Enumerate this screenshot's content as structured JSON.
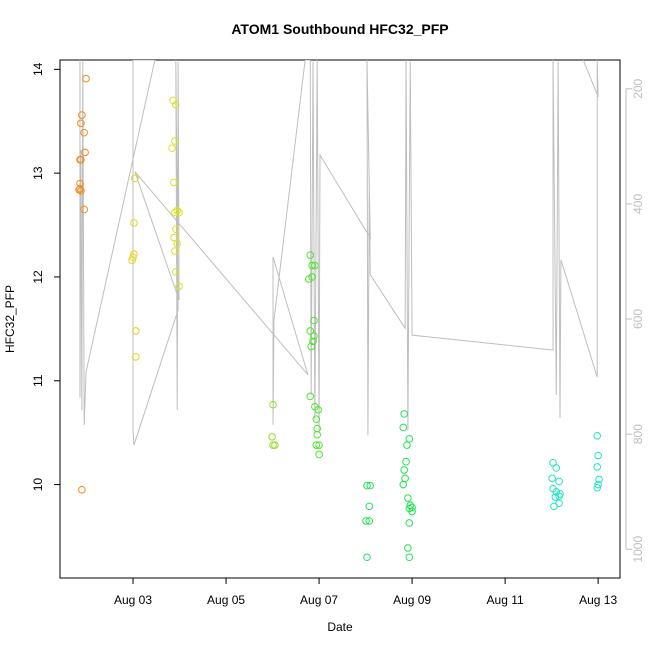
{
  "chart_data": {
    "type": "scatter",
    "title": "ATOM1 Southbound HFC32_PFP",
    "x_label": "Date",
    "y_label": "HFC32_PFP",
    "xlim": [
      1.43,
      13.47
    ],
    "xticks": [
      {
        "value": 3,
        "label": "Aug 03"
      },
      {
        "value": 5,
        "label": "Aug 05"
      },
      {
        "value": 7,
        "label": "Aug 07"
      },
      {
        "value": 9,
        "label": "Aug 09"
      },
      {
        "value": 11,
        "label": "Aug 11"
      },
      {
        "value": 13,
        "label": "Aug 13"
      }
    ],
    "ylim": [
      9.1,
      14.09
    ],
    "yticks": [
      10,
      11,
      12,
      13,
      14
    ],
    "y2lim": [
      1050,
      150
    ],
    "y2ticks": [
      200,
      400,
      600,
      800,
      1000
    ],
    "y2_color": "#bebebe",
    "series": [
      {
        "type": "line",
        "axis": "y2",
        "color": "#bebebe",
        "x": [
          1.86,
          1.86,
          1.88,
          1.9,
          1.92,
          1.95,
          1.99,
          3.47,
          3.0,
          3.0,
          3.02,
          3.97,
          3.92,
          3.95,
          3.97,
          3.99,
          3.04,
          6.76,
          6.01,
          6.01,
          6.03,
          6.7,
          6.81,
          6.83,
          6.87,
          6.91,
          6.96,
          7.0,
          7.02,
          8.1,
          8.03,
          8.05,
          8.08,
          8.1,
          8.85,
          8.87,
          8.91,
          8.96,
          9.0,
          12.03,
          12.03,
          12.1,
          12.14,
          12.18,
          12.2,
          12.98,
          12.98,
          13.0,
          12.68
        ],
        "values": [
          150,
          737,
          306,
          758,
          153,
          784,
          692,
          150,
          150,
          793,
          819,
          584,
          150,
          758,
          153,
          567,
          344,
          697,
          492,
          784,
          602,
          150,
          150,
          732,
          153,
          776,
          150,
          793,
          315,
          459,
          150,
          802,
          362,
          523,
          616,
          150,
          793,
          153,
          628,
          654,
          150,
          732,
          153,
          772,
          497,
          701,
          150,
          214,
          150
        ]
      },
      {
        "color": "#f08a1e",
        "x": [
          1.99,
          1.9,
          1.88,
          1.95,
          1.86,
          1.88,
          1.97,
          1.86,
          1.86,
          1.88,
          1.84,
          1.95,
          1.9
        ],
        "values": [
          13.91,
          13.56,
          13.48,
          13.39,
          13.13,
          13.13,
          13.2,
          12.9,
          12.85,
          12.83,
          12.84,
          12.65,
          9.95
        ]
      },
      {
        "color": "#e8d21e",
        "x": [
          3.04,
          3.02,
          3.02,
          3.0,
          2.98,
          3.06,
          3.06
        ],
        "values": [
          12.95,
          12.52,
          12.22,
          12.19,
          12.16,
          11.48,
          11.23
        ]
      },
      {
        "color": "#dde21e",
        "x": [
          3.86,
          3.92,
          3.9,
          3.84,
          3.88,
          3.95,
          3.9,
          3.99,
          3.92,
          3.88,
          3.95,
          3.9,
          3.92,
          3.99
        ],
        "values": [
          13.7,
          13.66,
          13.31,
          13.24,
          12.91,
          12.64,
          12.62,
          12.62,
          12.46,
          12.38,
          12.32,
          12.25,
          12.05,
          11.91
        ]
      },
      {
        "color": "#8ee224",
        "x": [
          6.01,
          5.99,
          6.01,
          6.05
        ],
        "values": [
          10.77,
          10.46,
          10.38,
          10.38
        ]
      },
      {
        "color": "#4ee42e",
        "x": [
          6.81,
          6.78,
          6.85,
          6.85,
          6.91,
          6.89,
          6.81,
          6.89,
          6.87,
          6.83,
          6.81,
          6.91,
          6.98,
          6.94,
          6.96,
          6.96,
          6.94,
          7.0,
          7.0
        ],
        "values": [
          12.21,
          11.98,
          12.0,
          12.11,
          12.11,
          11.58,
          11.48,
          11.43,
          11.38,
          11.33,
          10.85,
          10.75,
          10.72,
          10.63,
          10.54,
          10.48,
          10.38,
          10.38,
          10.29
        ]
      },
      {
        "color": "#22e452",
        "x": [
          8.03,
          8.1,
          8.08,
          8.01,
          8.08,
          8.03,
          8.83,
          8.81,
          8.89,
          8.94,
          8.87,
          8.83,
          8.85,
          8.81,
          8.91,
          8.96,
          8.94,
          9.0,
          9.0,
          8.94,
          8.91,
          8.94
        ],
        "values": [
          9.99,
          9.99,
          9.79,
          9.65,
          9.65,
          9.3,
          10.68,
          10.55,
          10.38,
          10.44,
          10.22,
          10.14,
          10.06,
          10.0,
          9.87,
          9.8,
          9.77,
          9.74,
          9.78,
          9.63,
          9.39,
          9.3
        ]
      },
      {
        "color": "#22e6be",
        "x": [
          12.03,
          12.1,
          12.01,
          12.16,
          12.03,
          12.1,
          12.08,
          12.16,
          12.18,
          12.05,
          12.16,
          12.98,
          13.0,
          12.98,
          13.02,
          13.0,
          12.98
        ],
        "values": [
          10.21,
          10.16,
          10.06,
          10.03,
          9.96,
          9.93,
          9.88,
          9.89,
          9.91,
          9.79,
          9.82,
          10.47,
          10.28,
          10.17,
          10.05,
          10.0,
          9.97
        ]
      }
    ]
  }
}
